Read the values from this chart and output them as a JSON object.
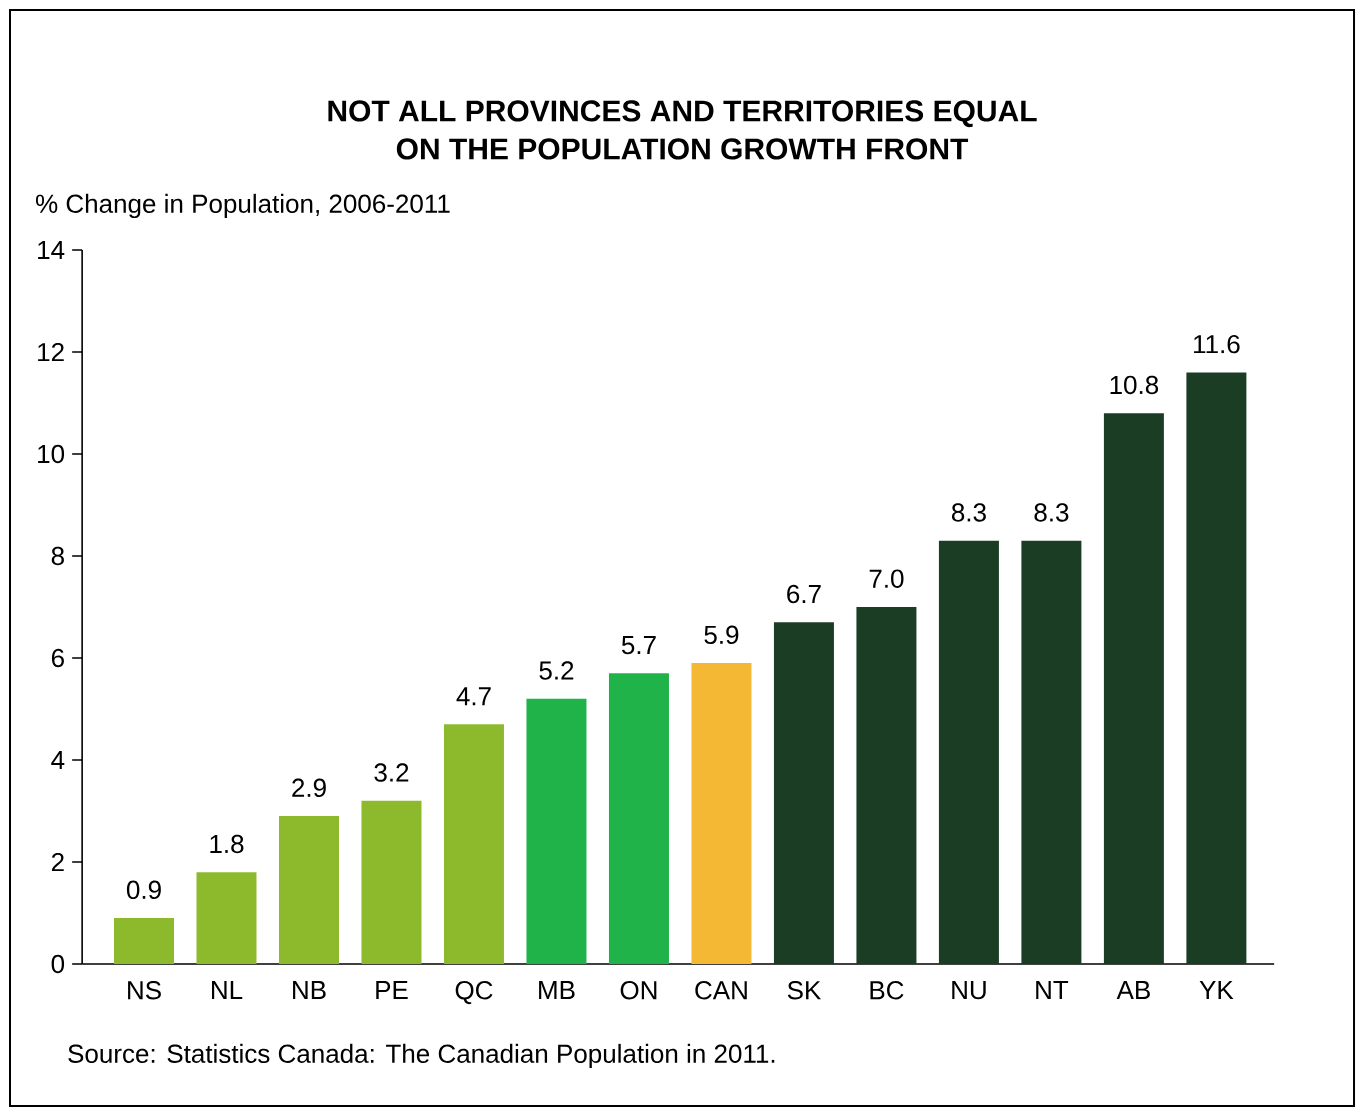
{
  "chart_data": {
    "type": "bar",
    "title": "NOT ALL PROVINCES AND TERRITORIES EQUAL\nON THE POPULATION GROWTH FRONT",
    "ylabel": "% Change in Population, 2006-2011",
    "categories": [
      "NS",
      "NL",
      "NB",
      "PE",
      "QC",
      "MB",
      "ON",
      "CAN",
      "SK",
      "BC",
      "NU",
      "NT",
      "AB",
      "YK"
    ],
    "values": [
      0.9,
      1.8,
      2.9,
      3.2,
      4.7,
      5.2,
      5.7,
      5.9,
      6.7,
      7.0,
      8.3,
      8.3,
      10.8,
      11.6
    ],
    "value_labels": [
      "0.9",
      "1.8",
      "2.9",
      "3.2",
      "4.7",
      "5.2",
      "5.7",
      "5.9",
      "6.7",
      "7.0",
      "8.3",
      "8.3",
      "10.8",
      "11.6"
    ],
    "colors": [
      "#8dba2c",
      "#8dba2c",
      "#8dba2c",
      "#8dba2c",
      "#8dba2c",
      "#1fb34a",
      "#1fb34a",
      "#f5b834",
      "#1b3d24",
      "#1b3d24",
      "#1b3d24",
      "#1b3d24",
      "#1b3d24",
      "#1b3d24"
    ],
    "ylim": [
      0,
      14
    ],
    "yticks": [
      0,
      2,
      4,
      6,
      8,
      10,
      12,
      14
    ],
    "annotations": [
      "Source: Statistics Canada: The Canadian Population in 2011."
    ]
  }
}
